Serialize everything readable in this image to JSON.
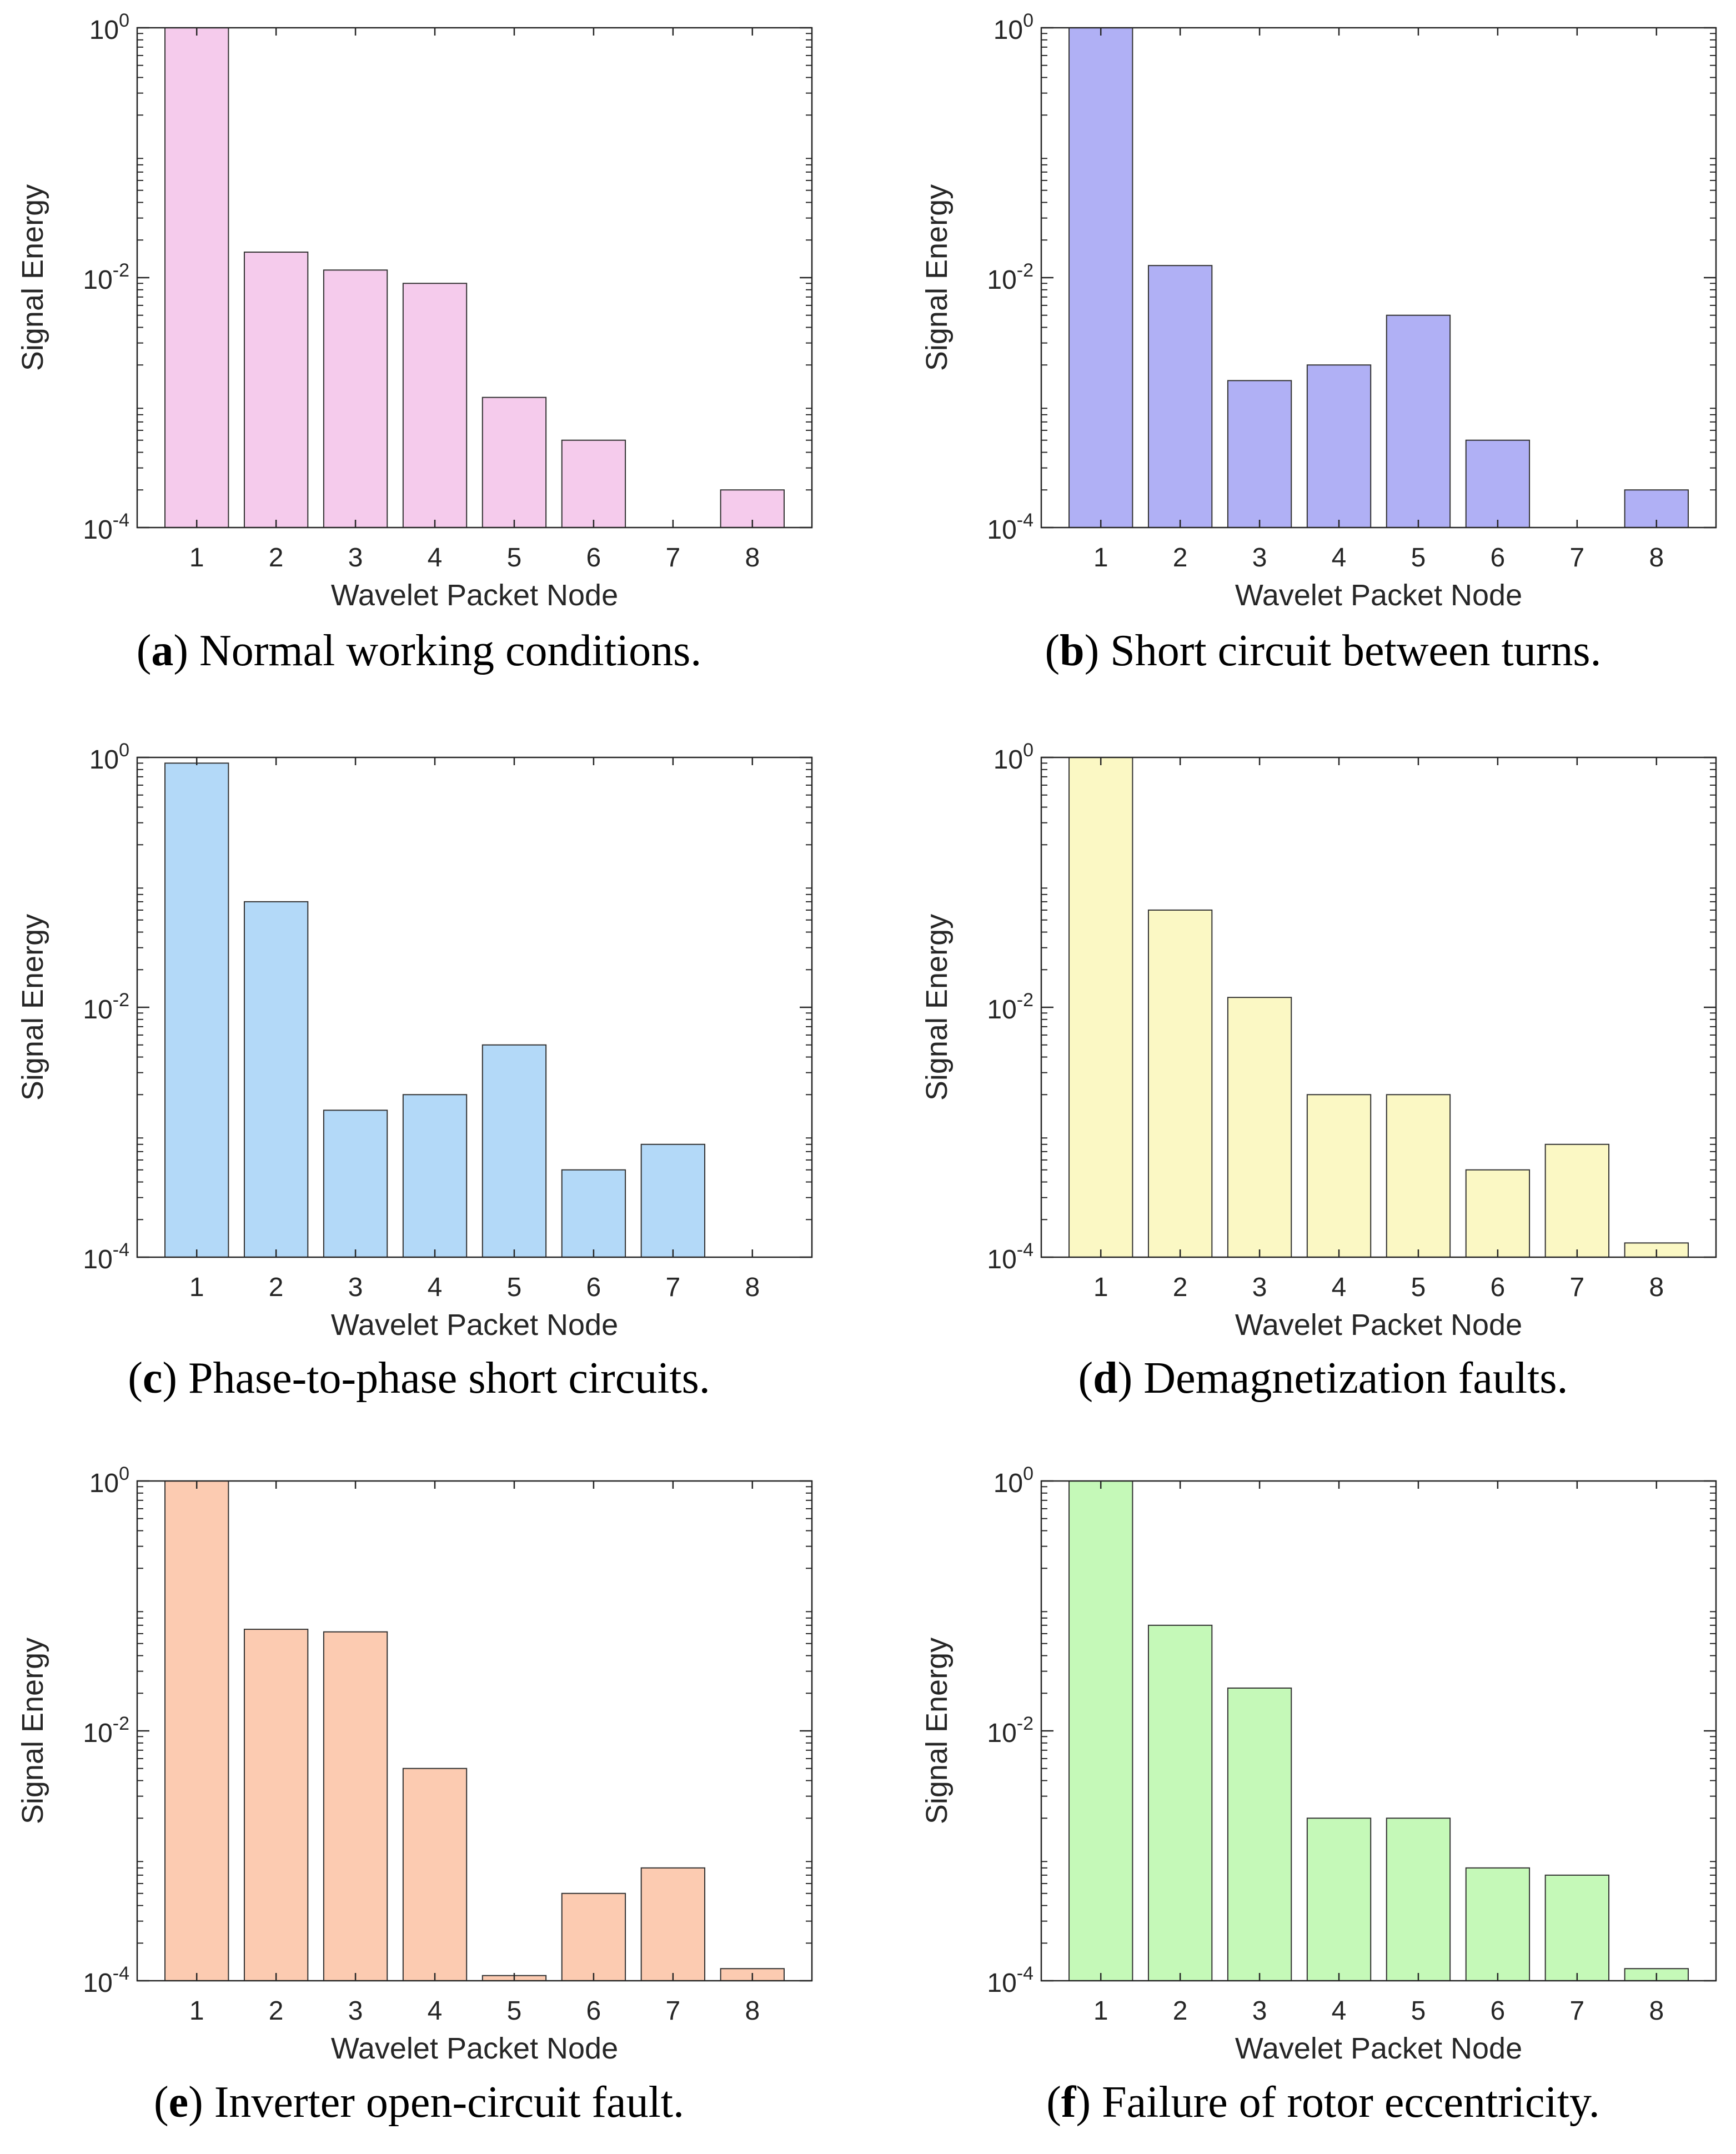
{
  "panels": [
    {
      "id": "a",
      "letter": "a",
      "caption_text": " Normal working conditions.",
      "bar_color": "#f5cbec",
      "chart_data": {
        "type": "bar",
        "scale": "log",
        "categories": [
          "1",
          "2",
          "3",
          "4",
          "5",
          "6",
          "7",
          "8"
        ],
        "values": [
          1.0,
          0.016,
          0.0115,
          0.009,
          0.0011,
          0.0005,
          null,
          0.0002
        ],
        "ylim": [
          0.0001,
          1
        ],
        "yticks": [
          "10^0",
          "10^-2",
          "10^-4"
        ],
        "xlabel": "Wavelet Packet Node",
        "ylabel": "Signal Energy"
      }
    },
    {
      "id": "b",
      "letter": "b",
      "caption_text": " Short circuit between turns.",
      "bar_color": "#b0b0f5",
      "chart_data": {
        "type": "bar",
        "scale": "log",
        "categories": [
          "1",
          "2",
          "3",
          "4",
          "5",
          "6",
          "7",
          "8"
        ],
        "values": [
          1.0,
          0.0125,
          0.0015,
          0.002,
          0.005,
          0.0005,
          null,
          0.0002
        ],
        "ylim": [
          0.0001,
          1
        ],
        "yticks": [
          "10^0",
          "10^-2",
          "10^-4"
        ],
        "xlabel": "Wavelet Packet Node",
        "ylabel": "Signal Energy"
      }
    },
    {
      "id": "c",
      "letter": "c",
      "caption_text": " Phase-to-phase short circuits.",
      "bar_color": "#b3d9f8",
      "chart_data": {
        "type": "bar",
        "scale": "log",
        "categories": [
          "1",
          "2",
          "3",
          "4",
          "5",
          "6",
          "7",
          "8"
        ],
        "values": [
          0.9,
          0.07,
          0.0015,
          0.002,
          0.005,
          0.0005,
          0.0008,
          null
        ],
        "ylim": [
          0.0001,
          1
        ],
        "yticks": [
          "10^0",
          "10^-2",
          "10^-4"
        ],
        "xlabel": "Wavelet Packet Node",
        "ylabel": "Signal Energy"
      }
    },
    {
      "id": "d",
      "letter": "d",
      "caption_text": " Demagnetization faults.",
      "bar_color": "#fbf8c4",
      "chart_data": {
        "type": "bar",
        "scale": "log",
        "categories": [
          "1",
          "2",
          "3",
          "4",
          "5",
          "6",
          "7",
          "8"
        ],
        "values": [
          1.0,
          0.06,
          0.012,
          0.002,
          0.002,
          0.0005,
          0.0008,
          0.00013
        ],
        "ylim": [
          0.0001,
          1
        ],
        "yticks": [
          "10^0",
          "10^-2",
          "10^-4"
        ],
        "xlabel": "Wavelet Packet Node",
        "ylabel": "Signal Energy"
      }
    },
    {
      "id": "e",
      "letter": "e",
      "caption_text": " Inverter open-circuit fault.",
      "bar_color": "#fccbb1",
      "chart_data": {
        "type": "bar",
        "scale": "log",
        "categories": [
          "1",
          "2",
          "3",
          "4",
          "5",
          "6",
          "7",
          "8"
        ],
        "values": [
          1.0,
          0.065,
          0.062,
          0.005,
          0.00011,
          0.0005,
          0.0008,
          0.000125
        ],
        "ylim": [
          0.0001,
          1
        ],
        "yticks": [
          "10^0",
          "10^-2",
          "10^-4"
        ],
        "xlabel": "Wavelet Packet Node",
        "ylabel": "Signal Energy"
      }
    },
    {
      "id": "f",
      "letter": "f",
      "caption_text": " Failure of rotor eccentricity.",
      "bar_color": "#c5f9b8",
      "chart_data": {
        "type": "bar",
        "scale": "log",
        "categories": [
          "1",
          "2",
          "3",
          "4",
          "5",
          "6",
          "7",
          "8"
        ],
        "values": [
          1.0,
          0.07,
          0.022,
          0.002,
          0.002,
          0.0008,
          0.0007,
          0.000125
        ],
        "ylim": [
          0.0001,
          1
        ],
        "yticks": [
          "10^0",
          "10^-2",
          "10^-4"
        ],
        "xlabel": "Wavelet Packet Node",
        "ylabel": "Signal Energy"
      }
    }
  ]
}
